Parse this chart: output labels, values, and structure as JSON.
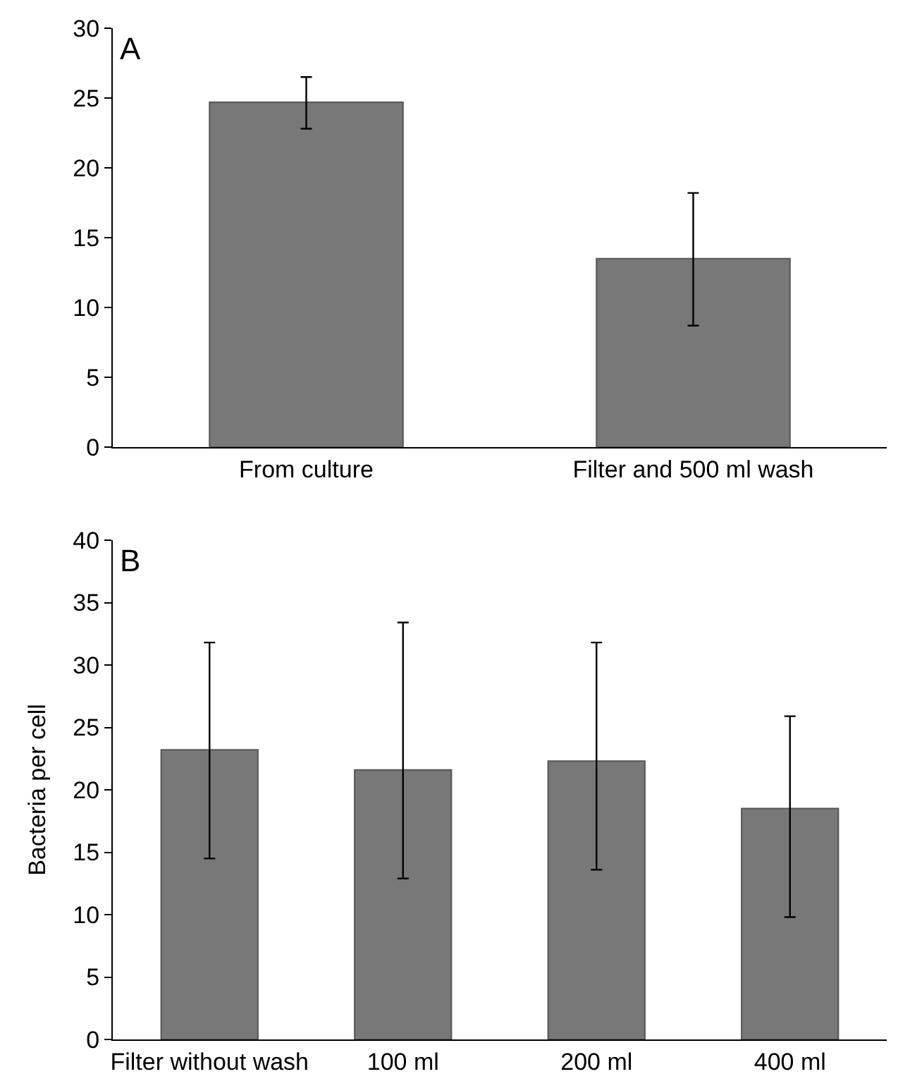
{
  "chart_data": [
    {
      "type": "bar",
      "title": "A",
      "categories": [
        "From culture",
        "Filter and 500 ml wash"
      ],
      "values": [
        24.7,
        13.5
      ],
      "errors": [
        [
          22.8,
          26.5
        ],
        [
          8.7,
          18.2
        ]
      ],
      "color": "#787878",
      "ylim": [
        0,
        30
      ],
      "yticks": [
        0,
        5,
        10,
        15,
        20,
        25,
        30
      ],
      "grid": false
    },
    {
      "type": "bar",
      "title": "B",
      "ylabel": "Bacteria per cell",
      "categories": [
        "Filter without wash",
        "100 ml",
        "200 ml",
        "400 ml"
      ],
      "values": [
        23.2,
        21.6,
        22.3,
        18.5
      ],
      "errors": [
        [
          14.5,
          31.8
        ],
        [
          12.9,
          33.4
        ],
        [
          13.6,
          31.8
        ],
        [
          9.8,
          25.9
        ]
      ],
      "color": "#787878",
      "ylim": [
        0,
        40
      ],
      "yticks": [
        0,
        5,
        10,
        15,
        20,
        25,
        30,
        35,
        40
      ],
      "grid": false
    }
  ]
}
